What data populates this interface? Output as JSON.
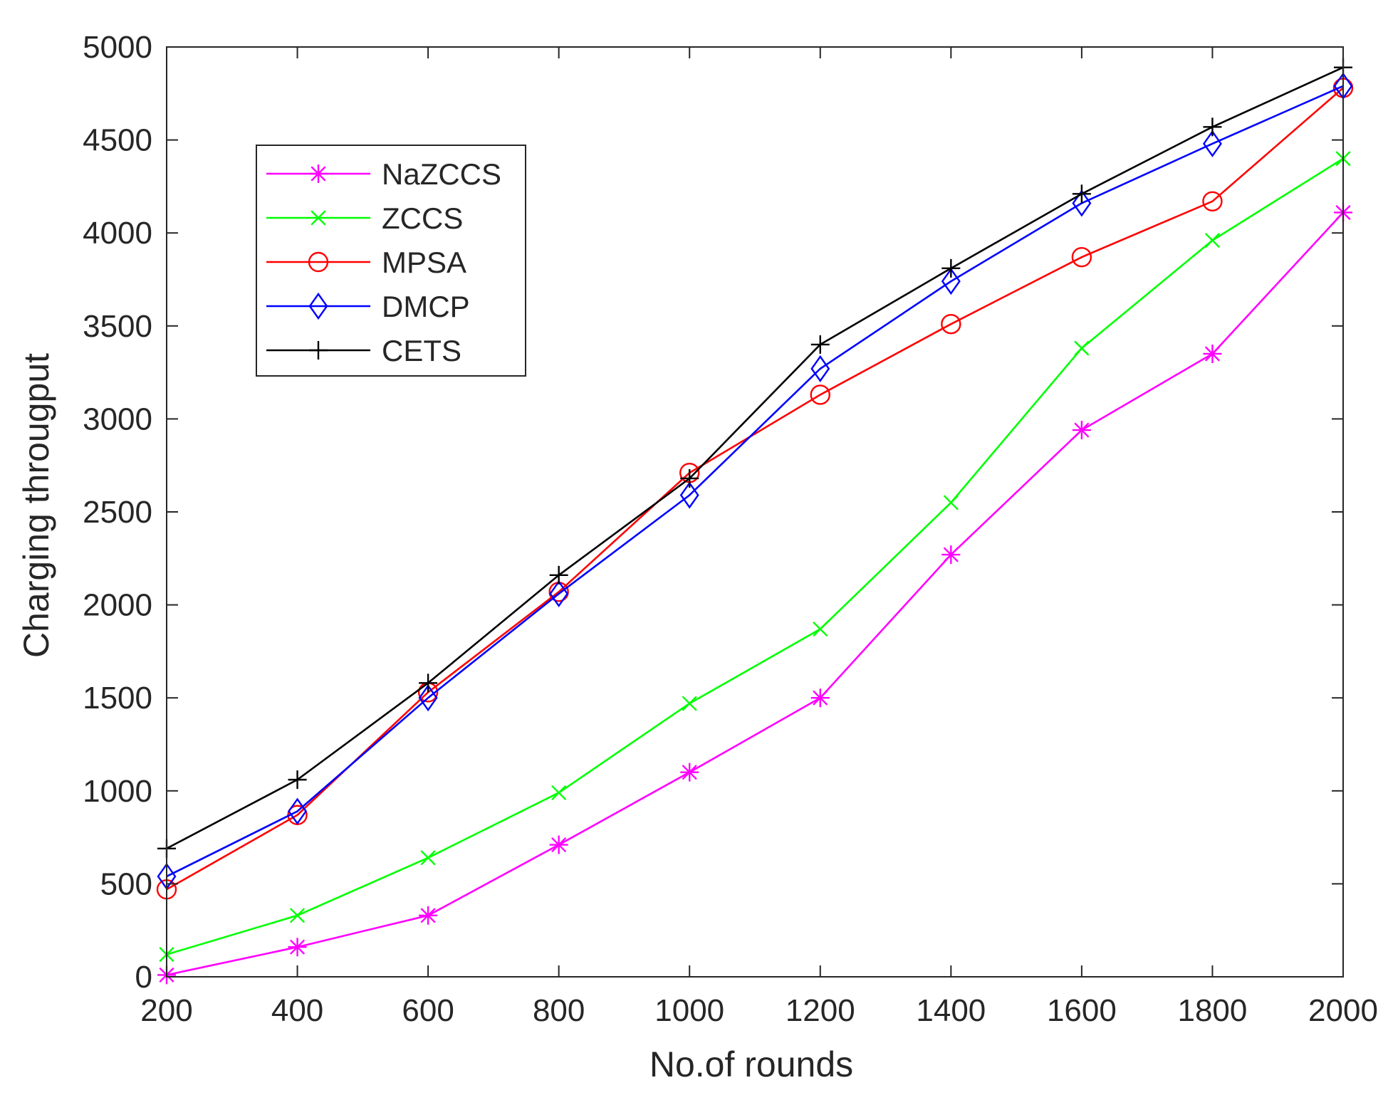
{
  "chart_data": {
    "type": "line",
    "title": "",
    "xlabel": "No.of rounds",
    "ylabel": "Charging througput",
    "xlim": [
      200,
      2000
    ],
    "ylim": [
      0,
      5000
    ],
    "grid": false,
    "legend_position": "top-left",
    "x": [
      200,
      400,
      600,
      800,
      1000,
      1200,
      1400,
      1600,
      1800,
      2000
    ],
    "xticks": [
      "200",
      "400",
      "600",
      "800",
      "1000",
      "1200",
      "1400",
      "1600",
      "1800",
      "2000"
    ],
    "yticks": [
      "0",
      "500",
      "1000",
      "1500",
      "2000",
      "2500",
      "3000",
      "3500",
      "4000",
      "4500",
      "5000"
    ],
    "series": [
      {
        "name": "NaZCCS",
        "color": "#ff00ff",
        "marker": "asterisk",
        "values": [
          10,
          160,
          330,
          710,
          1100,
          1500,
          2270,
          2940,
          3350,
          4110
        ]
      },
      {
        "name": "ZCCS",
        "color": "#00ff00",
        "marker": "x",
        "values": [
          120,
          330,
          640,
          990,
          1470,
          1870,
          2550,
          3380,
          3960,
          4400
        ]
      },
      {
        "name": "MPSA",
        "color": "#ff0000",
        "marker": "circle",
        "values": [
          470,
          870,
          1530,
          2070,
          2710,
          3130,
          3510,
          3870,
          4170,
          4780
        ]
      },
      {
        "name": "DMCP",
        "color": "#0000ff",
        "marker": "diamond",
        "values": [
          540,
          890,
          1500,
          2060,
          2590,
          3270,
          3740,
          4160,
          4480,
          4790
        ]
      },
      {
        "name": "CETS",
        "color": "#000000",
        "marker": "plus",
        "values": [
          690,
          1060,
          1580,
          2160,
          2680,
          3400,
          3810,
          4210,
          4570,
          4890
        ]
      }
    ]
  }
}
